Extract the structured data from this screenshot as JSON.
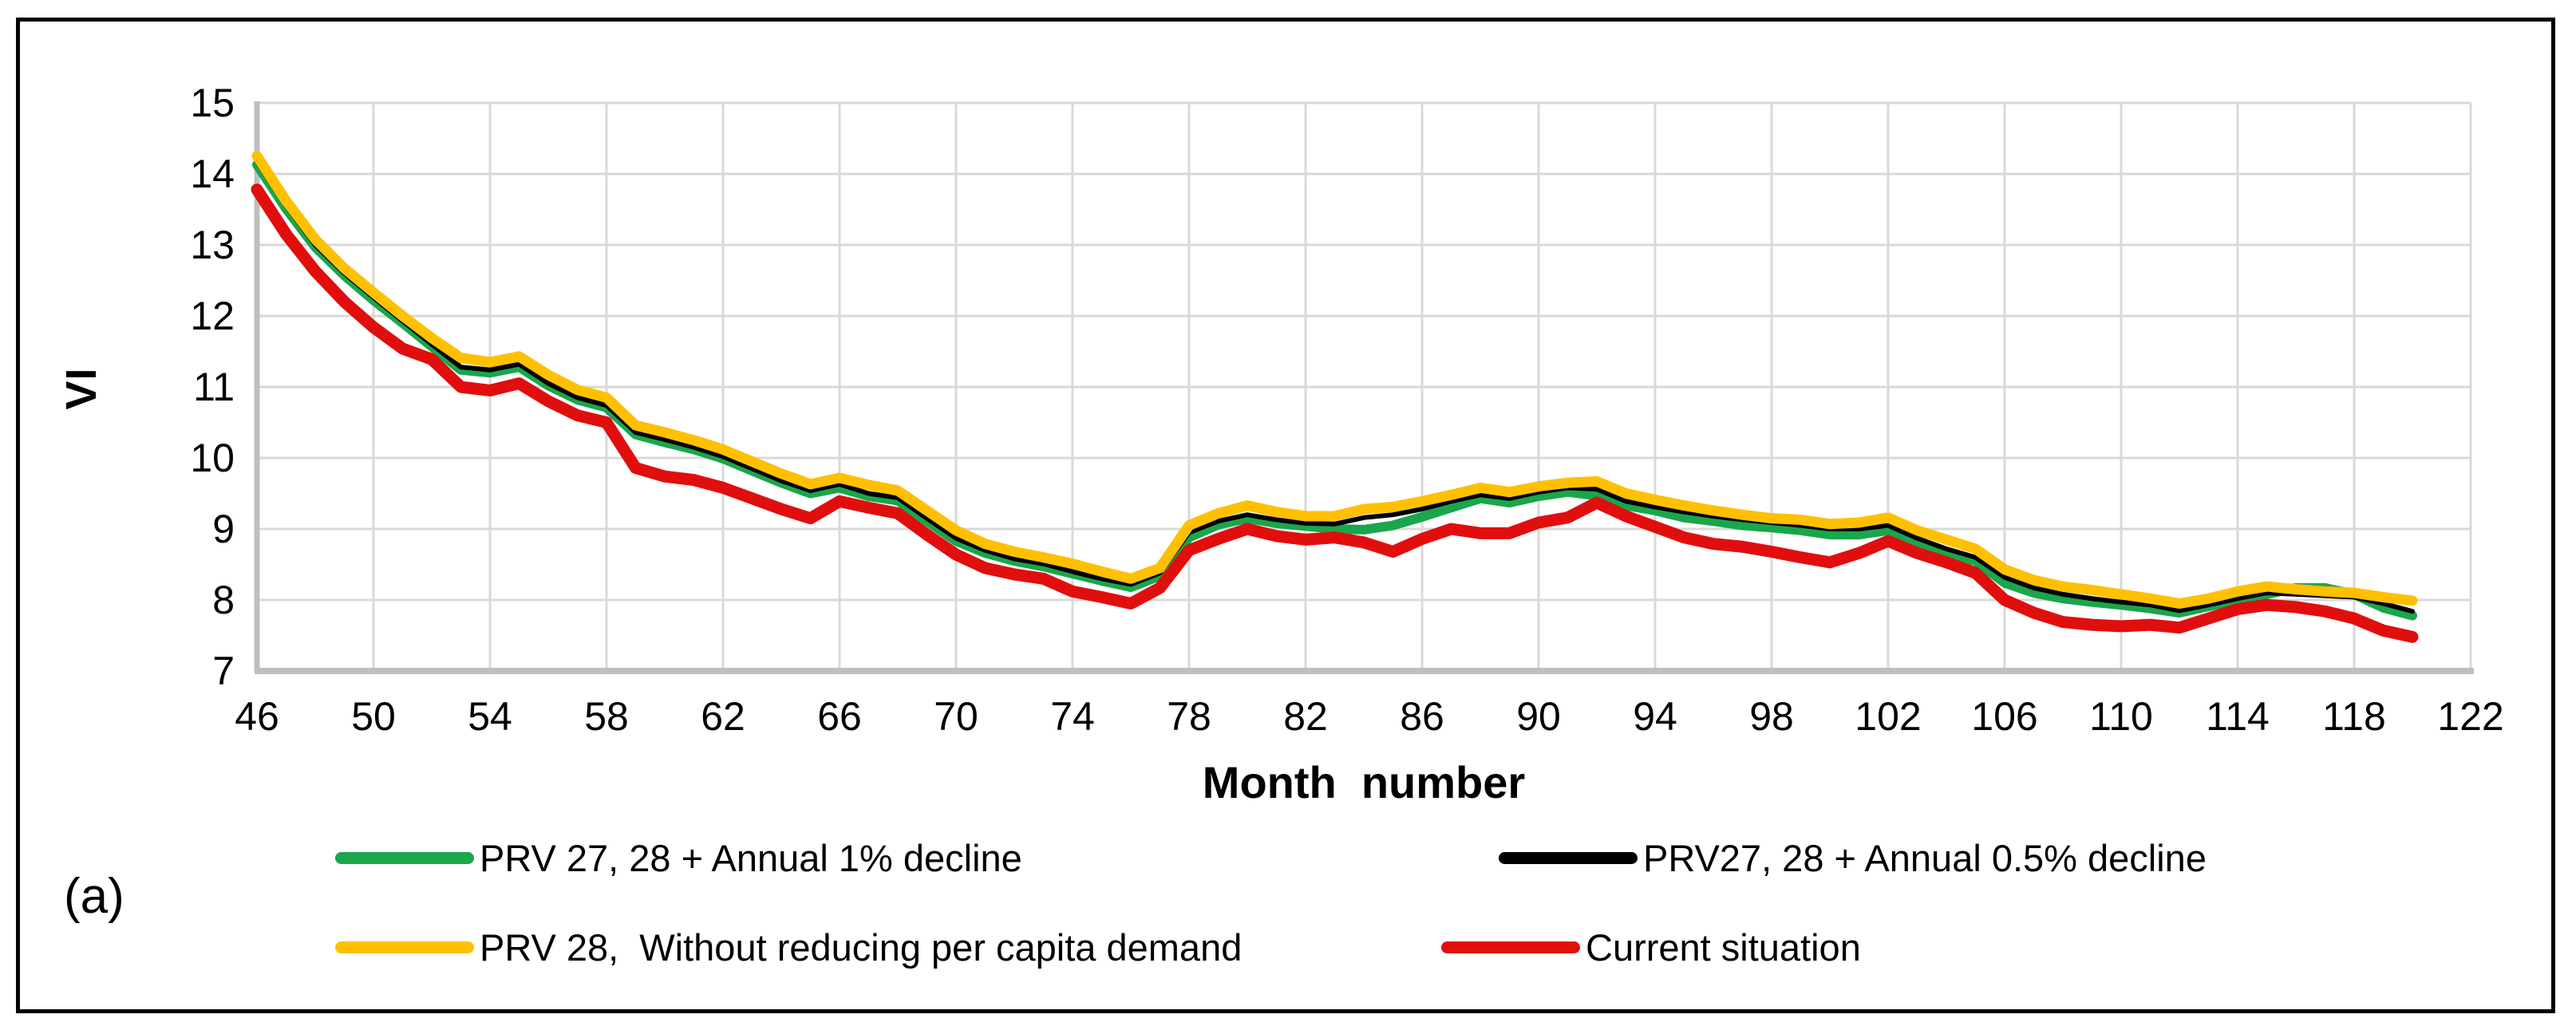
{
  "figure": {
    "panel_label": "(a)"
  },
  "chart_data": {
    "type": "line",
    "title": "",
    "xlabel": "Month  number",
    "ylabel": "VI",
    "xlim": [
      46,
      122
    ],
    "ylim": [
      7,
      15
    ],
    "x_ticks": [
      46,
      50,
      54,
      58,
      62,
      66,
      70,
      74,
      78,
      82,
      86,
      90,
      94,
      98,
      102,
      106,
      110,
      114,
      118,
      122
    ],
    "y_ticks": [
      7,
      8,
      9,
      10,
      11,
      12,
      13,
      14,
      15
    ],
    "grid": true,
    "legend_position": "bottom",
    "gridline_color": "#D9D9D9",
    "axis_line_color": "#BFBFBF",
    "x": [
      46,
      47,
      48,
      49,
      50,
      51,
      52,
      53,
      54,
      55,
      56,
      57,
      58,
      59,
      60,
      61,
      62,
      63,
      64,
      65,
      66,
      67,
      68,
      69,
      70,
      71,
      72,
      73,
      74,
      75,
      76,
      77,
      78,
      79,
      80,
      81,
      82,
      83,
      84,
      85,
      86,
      87,
      88,
      89,
      90,
      91,
      92,
      93,
      94,
      95,
      96,
      97,
      98,
      99,
      100,
      101,
      102,
      103,
      104,
      105,
      106,
      107,
      108,
      109,
      110,
      111,
      112,
      113,
      114,
      115,
      116,
      117,
      118,
      119,
      120
    ],
    "series": [
      {
        "name": "PRV 27, 28 + Annual 1% decline",
        "color": "#1AA64B",
        "values": [
          14.13,
          13.51,
          12.97,
          12.57,
          12.22,
          11.9,
          11.57,
          11.24,
          11.2,
          11.28,
          11.02,
          10.82,
          10.71,
          10.33,
          10.22,
          10.12,
          9.99,
          9.82,
          9.65,
          9.5,
          9.58,
          9.46,
          9.4,
          9.11,
          8.83,
          8.66,
          8.55,
          8.47,
          8.37,
          8.27,
          8.18,
          8.34,
          8.88,
          9.06,
          9.15,
          9.08,
          9.04,
          9.0,
          8.99,
          9.05,
          9.17,
          9.3,
          9.43,
          9.37,
          9.46,
          9.52,
          9.47,
          9.33,
          9.26,
          9.16,
          9.11,
          9.05,
          9.02,
          8.98,
          8.92,
          8.92,
          8.98,
          8.77,
          8.64,
          8.55,
          8.24,
          8.1,
          8.02,
          7.97,
          7.93,
          7.88,
          7.82,
          7.91,
          8.0,
          8.08,
          8.17,
          8.17,
          8.08,
          7.89,
          7.78
        ]
      },
      {
        "name": "PRV27, 28 + Annual 0.5% decline",
        "color": "#000000",
        "values": [
          14.17,
          13.55,
          13.0,
          12.6,
          12.26,
          11.93,
          11.6,
          11.28,
          11.24,
          11.32,
          11.05,
          10.85,
          10.74,
          10.36,
          10.26,
          10.15,
          10.02,
          9.85,
          9.68,
          9.54,
          9.63,
          9.5,
          9.44,
          9.15,
          8.87,
          8.7,
          8.58,
          8.51,
          8.4,
          8.3,
          8.22,
          8.38,
          8.95,
          9.11,
          9.2,
          9.13,
          9.08,
          9.07,
          9.16,
          9.2,
          9.28,
          9.39,
          9.48,
          9.43,
          9.52,
          9.58,
          9.56,
          9.39,
          9.31,
          9.24,
          9.18,
          9.13,
          9.09,
          9.05,
          9.0,
          9.0,
          9.05,
          8.87,
          8.72,
          8.6,
          8.32,
          8.17,
          8.08,
          8.02,
          7.97,
          7.93,
          7.85,
          7.93,
          8.02,
          8.1,
          8.08,
          8.06,
          8.04,
          7.95,
          7.84
        ]
      },
      {
        "name": "PRV 28,  Without reducing per capita demand",
        "color": "#FFC000",
        "values": [
          14.25,
          13.62,
          13.08,
          12.67,
          12.33,
          12.0,
          11.69,
          11.41,
          11.35,
          11.43,
          11.17,
          10.96,
          10.85,
          10.46,
          10.36,
          10.25,
          10.12,
          9.95,
          9.78,
          9.63,
          9.72,
          9.62,
          9.54,
          9.26,
          8.98,
          8.79,
          8.68,
          8.6,
          8.51,
          8.4,
          8.3,
          8.45,
          9.05,
          9.22,
          9.33,
          9.24,
          9.18,
          9.18,
          9.28,
          9.31,
          9.39,
          9.48,
          9.58,
          9.52,
          9.6,
          9.65,
          9.67,
          9.5,
          9.41,
          9.33,
          9.26,
          9.2,
          9.15,
          9.13,
          9.07,
          9.09,
          9.16,
          8.98,
          8.85,
          8.72,
          8.43,
          8.28,
          8.19,
          8.14,
          8.08,
          8.02,
          7.95,
          8.02,
          8.12,
          8.19,
          8.15,
          8.12,
          8.1,
          8.04,
          7.99
        ]
      },
      {
        "name": "Current situation",
        "color": "#E10E0E",
        "values": [
          13.78,
          13.15,
          12.63,
          12.2,
          11.84,
          11.54,
          11.39,
          11.0,
          10.95,
          11.05,
          10.8,
          10.6,
          10.5,
          9.86,
          9.74,
          9.69,
          9.58,
          9.43,
          9.28,
          9.15,
          9.39,
          9.3,
          9.22,
          8.92,
          8.64,
          8.45,
          8.36,
          8.3,
          8.12,
          8.04,
          7.95,
          8.17,
          8.7,
          8.86,
          9.0,
          8.9,
          8.85,
          8.88,
          8.81,
          8.68,
          8.86,
          9.0,
          8.94,
          8.94,
          9.09,
          9.16,
          9.37,
          9.18,
          9.03,
          8.88,
          8.79,
          8.75,
          8.68,
          8.6,
          8.53,
          8.66,
          8.83,
          8.66,
          8.53,
          8.38,
          8.0,
          7.82,
          7.69,
          7.65,
          7.63,
          7.65,
          7.61,
          7.74,
          7.87,
          7.93,
          7.9,
          7.84,
          7.74,
          7.57,
          7.48
        ]
      }
    ]
  }
}
